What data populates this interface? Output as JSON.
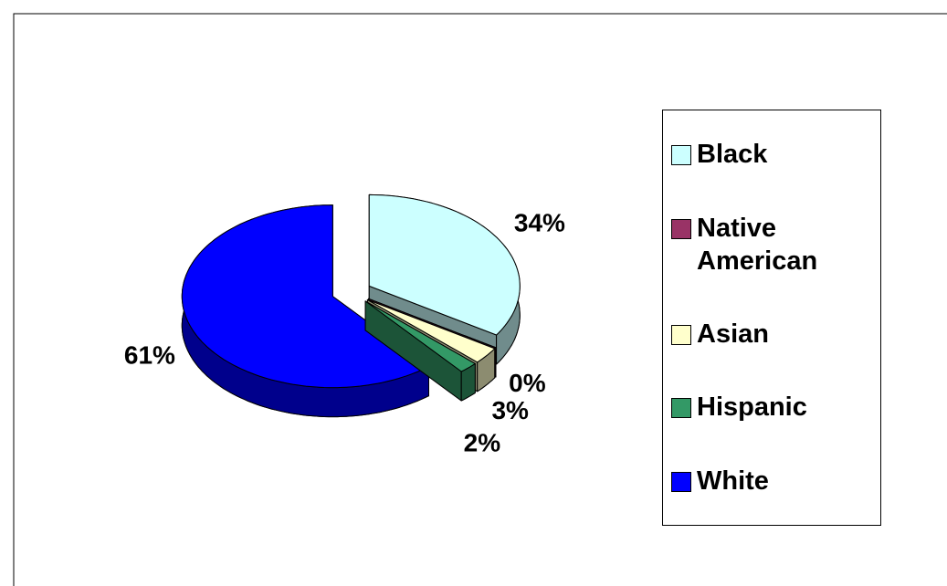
{
  "chart_data": {
    "type": "pie",
    "categories": [
      "Black",
      "Native American",
      "Asian",
      "Hispanic",
      "White"
    ],
    "values": [
      34,
      0,
      3,
      2,
      61
    ],
    "value_labels": [
      "34%",
      "0%",
      "3%",
      "2%",
      "61%"
    ],
    "colors": [
      "#ccffff",
      "#993366",
      "#ffffcc",
      "#339966",
      "#0000ff"
    ],
    "legend": "right"
  }
}
